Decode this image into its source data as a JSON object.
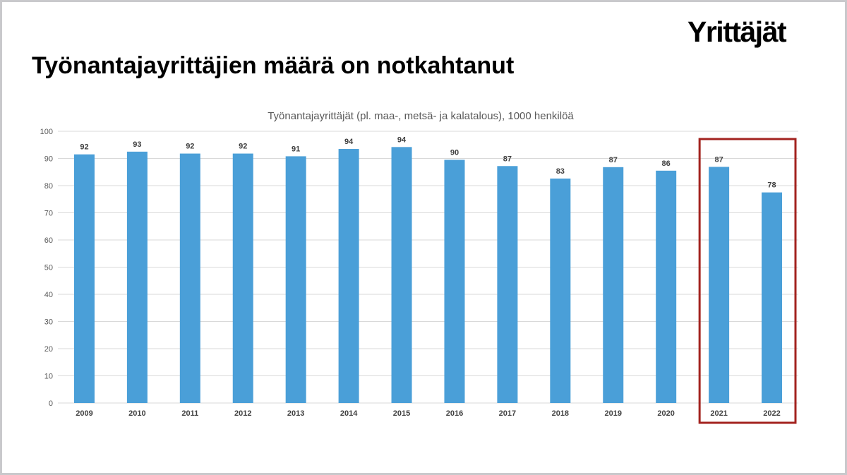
{
  "slide": {
    "title": "Työnantajayrittäjien määrä on notkahtanut",
    "logo_text": "Yrittäjät"
  },
  "chart_data": {
    "type": "bar",
    "title": "Työnantajayrittäjät  (pl. maa-, metsä- ja kalatalous), 1000 henkilöä",
    "xlabel": "",
    "ylabel": "",
    "categories": [
      "2009",
      "2010",
      "2011",
      "2012",
      "2013",
      "2014",
      "2015",
      "2016",
      "2017",
      "2018",
      "2019",
      "2020",
      "2021",
      "2022"
    ],
    "values": [
      91.5,
      92.5,
      91.8,
      91.8,
      90.8,
      93.5,
      94.2,
      89.5,
      87.2,
      82.6,
      86.8,
      85.5,
      86.9,
      77.5
    ],
    "data_labels": [
      "92",
      "93",
      "92",
      "92",
      "91",
      "94",
      "94",
      "90",
      "87",
      "83",
      "87",
      "86",
      "87",
      "78"
    ],
    "ylim": [
      0,
      100
    ],
    "yticks": [
      "0",
      "10",
      "20",
      "30",
      "40",
      "50",
      "60",
      "70",
      "80",
      "90",
      "100"
    ],
    "grid": true,
    "legend": "none",
    "bar_color": "#4a9fd8",
    "highlight": {
      "categories": [
        "2021",
        "2022"
      ],
      "color": "#a3231f"
    }
  }
}
